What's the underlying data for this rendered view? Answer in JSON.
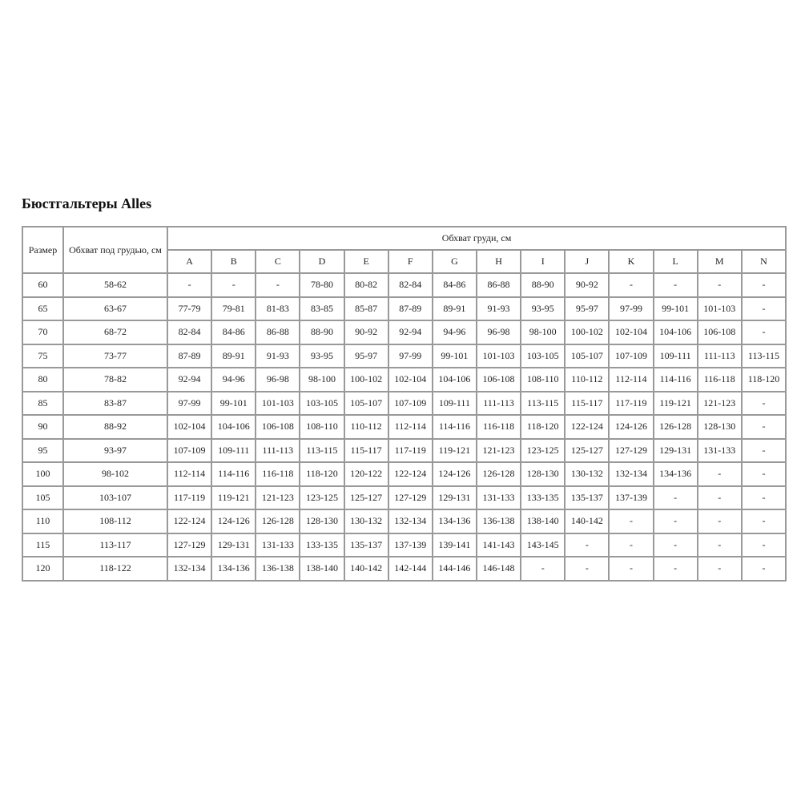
{
  "title": "Бюстгальтеры Alles",
  "table": {
    "headers": {
      "size": "Размер",
      "underbust": "Обхват под грудью, см",
      "bust": "Обхват груди, см",
      "cups": [
        "A",
        "B",
        "C",
        "D",
        "E",
        "F",
        "G",
        "H",
        "I",
        "J",
        "K",
        "L",
        "M",
        "N"
      ]
    },
    "rows": [
      {
        "size": "60",
        "underbust": "58-62",
        "values": [
          "-",
          "-",
          "-",
          "78-80",
          "80-82",
          "82-84",
          "84-86",
          "86-88",
          "88-90",
          "90-92",
          "-",
          "-",
          "-",
          "-"
        ]
      },
      {
        "size": "65",
        "underbust": "63-67",
        "values": [
          "77-79",
          "79-81",
          "81-83",
          "83-85",
          "85-87",
          "87-89",
          "89-91",
          "91-93",
          "93-95",
          "95-97",
          "97-99",
          "99-101",
          "101-103",
          "-"
        ]
      },
      {
        "size": "70",
        "underbust": "68-72",
        "values": [
          "82-84",
          "84-86",
          "86-88",
          "88-90",
          "90-92",
          "92-94",
          "94-96",
          "96-98",
          "98-100",
          "100-102",
          "102-104",
          "104-106",
          "106-108",
          "-"
        ]
      },
      {
        "size": "75",
        "underbust": "73-77",
        "values": [
          "87-89",
          "89-91",
          "91-93",
          "93-95",
          "95-97",
          "97-99",
          "99-101",
          "101-103",
          "103-105",
          "105-107",
          "107-109",
          "109-111",
          "111-113",
          "113-115"
        ]
      },
      {
        "size": "80",
        "underbust": "78-82",
        "values": [
          "92-94",
          "94-96",
          "96-98",
          "98-100",
          "100-102",
          "102-104",
          "104-106",
          "106-108",
          "108-110",
          "110-112",
          "112-114",
          "114-116",
          "116-118",
          "118-120"
        ]
      },
      {
        "size": "85",
        "underbust": "83-87",
        "values": [
          "97-99",
          "99-101",
          "101-103",
          "103-105",
          "105-107",
          "107-109",
          "109-111",
          "111-113",
          "113-115",
          "115-117",
          "117-119",
          "119-121",
          "121-123",
          "-"
        ]
      },
      {
        "size": "90",
        "underbust": "88-92",
        "values": [
          "102-104",
          "104-106",
          "106-108",
          "108-110",
          "110-112",
          "112-114",
          "114-116",
          "116-118",
          "118-120",
          "122-124",
          "124-126",
          "126-128",
          "128-130",
          "-"
        ]
      },
      {
        "size": "95",
        "underbust": "93-97",
        "values": [
          "107-109",
          "109-111",
          "111-113",
          "113-115",
          "115-117",
          "117-119",
          "119-121",
          "121-123",
          "123-125",
          "125-127",
          "127-129",
          "129-131",
          "131-133",
          "-"
        ]
      },
      {
        "size": "100",
        "underbust": "98-102",
        "values": [
          "112-114",
          "114-116",
          "116-118",
          "118-120",
          "120-122",
          "122-124",
          "124-126",
          "126-128",
          "128-130",
          "130-132",
          "132-134",
          "134-136",
          "-",
          "-"
        ]
      },
      {
        "size": "105",
        "underbust": "103-107",
        "values": [
          "117-119",
          "119-121",
          "121-123",
          "123-125",
          "125-127",
          "127-129",
          "129-131",
          "131-133",
          "133-135",
          "135-137",
          "137-139",
          "-",
          "-",
          "-"
        ]
      },
      {
        "size": "110",
        "underbust": "108-112",
        "values": [
          "122-124",
          "124-126",
          "126-128",
          "128-130",
          "130-132",
          "132-134",
          "134-136",
          "136-138",
          "138-140",
          "140-142",
          "-",
          "-",
          "-",
          "-"
        ]
      },
      {
        "size": "115",
        "underbust": "113-117",
        "values": [
          "127-129",
          "129-131",
          "131-133",
          "133-135",
          "135-137",
          "137-139",
          "139-141",
          "141-143",
          "143-145",
          "-",
          "-",
          "-",
          "-",
          "-"
        ]
      },
      {
        "size": "120",
        "underbust": "118-122",
        "values": [
          "132-134",
          "134-136",
          "136-138",
          "138-140",
          "140-142",
          "142-144",
          "144-146",
          "146-148",
          "-",
          "-",
          "-",
          "-",
          "-",
          "-"
        ]
      }
    ]
  }
}
